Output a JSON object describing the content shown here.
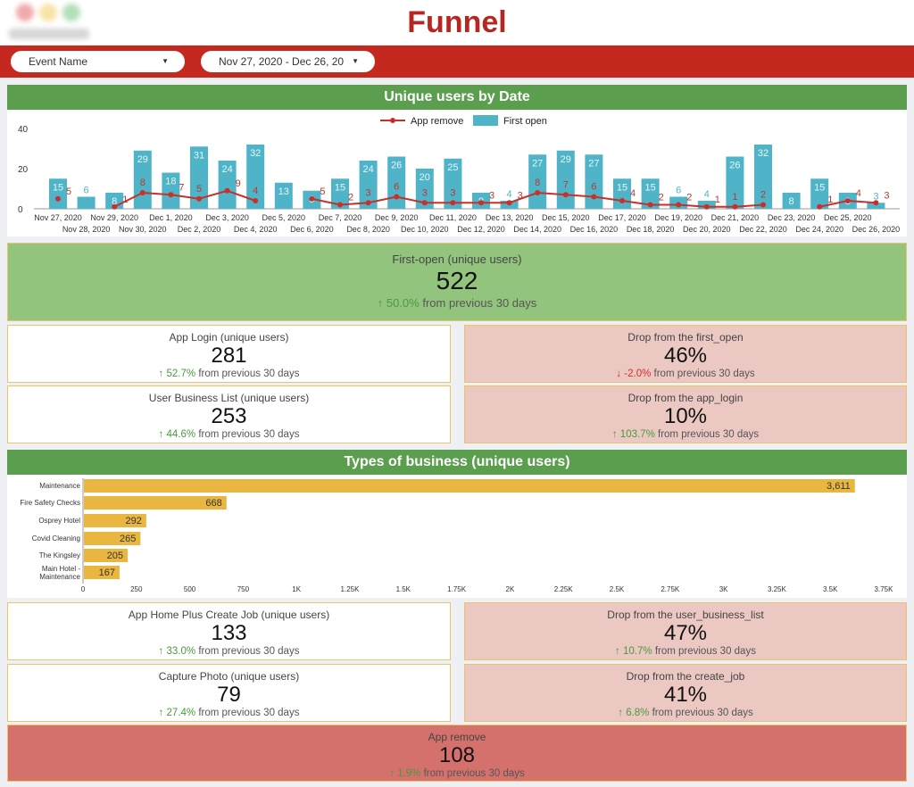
{
  "header": {
    "title": "Funnel",
    "logo_text": "logo"
  },
  "filters": {
    "event": "Event Name",
    "date": "Nov 27, 2020 - Dec 26, 20"
  },
  "colors": {
    "accent": "#c5281f",
    "panel_header": "#5b9e4d",
    "bar": "#4fb4c8",
    "line": "#c8302a",
    "hbar": "#e9b740"
  },
  "chart_data": [
    {
      "type": "bar",
      "title": "Unique users by Date",
      "ylim": [
        0,
        40
      ],
      "yticks": [
        0,
        20,
        40
      ],
      "legend": [
        "App remove",
        "First open"
      ],
      "legend_position": "top",
      "categories": [
        "Nov 27, 2020",
        "Nov 28, 2020",
        "Nov 29, 2020",
        "Nov 30, 2020",
        "Dec 1, 2020",
        "Dec 2, 2020",
        "Dec 3, 2020",
        "Dec 4, 2020",
        "Dec 5, 2020",
        "Dec 6, 2020",
        "Dec 7, 2020",
        "Dec 8, 2020",
        "Dec 9, 2020",
        "Dec 10, 2020",
        "Dec 11, 2020",
        "Dec 12, 2020",
        "Dec 13, 2020",
        "Dec 14, 2020",
        "Dec 15, 2020",
        "Dec 16, 2020",
        "Dec 17, 2020",
        "Dec 18, 2020",
        "Dec 19, 2020",
        "Dec 20, 2020",
        "Dec 21, 2020",
        "Dec 22, 2020",
        "Dec 23, 2020",
        "Dec 24, 2020",
        "Dec 25, 2020",
        "Dec 26, 2020"
      ],
      "series": [
        {
          "name": "First open",
          "kind": "bar",
          "values": [
            15,
            6,
            8,
            29,
            18,
            31,
            24,
            32,
            13,
            9,
            15,
            24,
            26,
            20,
            25,
            8,
            4,
            27,
            29,
            27,
            15,
            15,
            6,
            4,
            26,
            32,
            8,
            15,
            8,
            3
          ]
        },
        {
          "name": "App remove",
          "kind": "line",
          "values": [
            5,
            null,
            1,
            8,
            7,
            5,
            9,
            4,
            null,
            5,
            2,
            3,
            6,
            3,
            3,
            3,
            3,
            8,
            7,
            6,
            4,
            2,
            2,
            1,
            1,
            2,
            null,
            1,
            4,
            3
          ]
        }
      ]
    },
    {
      "type": "bar",
      "orientation": "horizontal",
      "title": "Types of business (unique users)",
      "xlim": [
        0,
        3750
      ],
      "xticks": [
        "0",
        "250",
        "500",
        "750",
        "1K",
        "1.25K",
        "1.5K",
        "1.75K",
        "2K",
        "2.25K",
        "2.5K",
        "2.75K",
        "3K",
        "3.25K",
        "3.5K",
        "3.75K"
      ],
      "categories": [
        "Maintenance",
        "Fire Safety Checks",
        "Osprey Hotel",
        "Covid Cleaning",
        "The Kingsley",
        "Main Hotel - Maintenance"
      ],
      "values": [
        3611,
        668,
        292,
        265,
        205,
        167
      ],
      "labels": [
        "3,611",
        "668",
        "292",
        "265",
        "205",
        "167"
      ]
    }
  ],
  "cards": {
    "first_open": {
      "label": "First-open (unique users)",
      "value": "522",
      "change": "50.0%",
      "suffix": "from previous 30 days"
    },
    "app_login": {
      "label": "App Login (unique users)",
      "value": "281",
      "change": "52.7%",
      "suffix": "from previous 30 days"
    },
    "drop_first_open": {
      "label": "Drop from the first_open",
      "value": "46%",
      "change": "-2.0%",
      "suffix": "from previous 30 days"
    },
    "user_business": {
      "label": "User Business List (unique users)",
      "value": "253",
      "change": "44.6%",
      "suffix": "from previous 30 days"
    },
    "drop_app_login": {
      "label": "Drop from the app_login",
      "value": "10%",
      "change": "103.7%",
      "suffix": "from previous 30 days"
    },
    "home_create": {
      "label": "App Home Plus Create Job (unique users)",
      "value": "133",
      "change": "33.0%",
      "suffix": "from previous 30 days"
    },
    "drop_ubl": {
      "label": "Drop from the user_business_list",
      "value": "47%",
      "change": "10.7%",
      "suffix": "from previous 30 days"
    },
    "capture": {
      "label": "Capture Photo (unique users)",
      "value": "79",
      "change": "27.4%",
      "suffix": "from previous 30 days"
    },
    "drop_create": {
      "label": "Drop from the create_job",
      "value": "41%",
      "change": "6.8%",
      "suffix": "from previous 30 days"
    },
    "app_remove": {
      "label": "App remove",
      "value": "108",
      "change": "1.9%",
      "suffix": "from previous 30 days"
    }
  }
}
